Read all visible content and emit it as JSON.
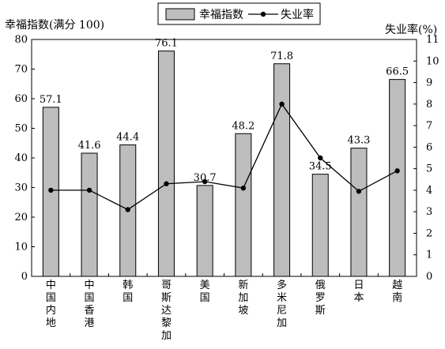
{
  "chart_data": {
    "type": "bar",
    "left_axis_title": "幸福指数(满分 100)",
    "right_axis_title": "失业率(%)",
    "categories": [
      "中国内地",
      "中国香港",
      "韩国",
      "哥斯达黎加",
      "美国",
      "新加坡",
      "多米尼加",
      "俄罗斯",
      "日本",
      "越南"
    ],
    "series": [
      {
        "name": "幸福指数",
        "type": "bar",
        "axis": "left",
        "values": [
          57.1,
          41.6,
          44.4,
          76.1,
          30.7,
          48.2,
          71.8,
          34.5,
          43.3,
          66.5
        ],
        "value_labels": [
          "57.1",
          "41.6",
          "44.4",
          "76.1",
          "30.7",
          "48.2",
          "71.8",
          "34.5",
          "43.3",
          "66.5"
        ],
        "color": "#bdbdbd"
      },
      {
        "name": "失业率",
        "type": "line",
        "axis": "right",
        "values": [
          4.0,
          4.0,
          3.1,
          4.3,
          4.4,
          4.1,
          8.0,
          5.5,
          3.95,
          4.9
        ],
        "color": "#000000"
      }
    ],
    "left_ylim": [
      0,
      80
    ],
    "left_ticks": [
      "0",
      "10",
      "20",
      "30",
      "40",
      "50",
      "60",
      "70",
      "80"
    ],
    "right_ylim": [
      0,
      11
    ],
    "right_ticks": [
      "0",
      "1",
      "2",
      "3",
      "4",
      "5",
      "6",
      "7",
      "8",
      "9",
      "10",
      "11"
    ],
    "legend_position": "top-center",
    "grid": false
  }
}
